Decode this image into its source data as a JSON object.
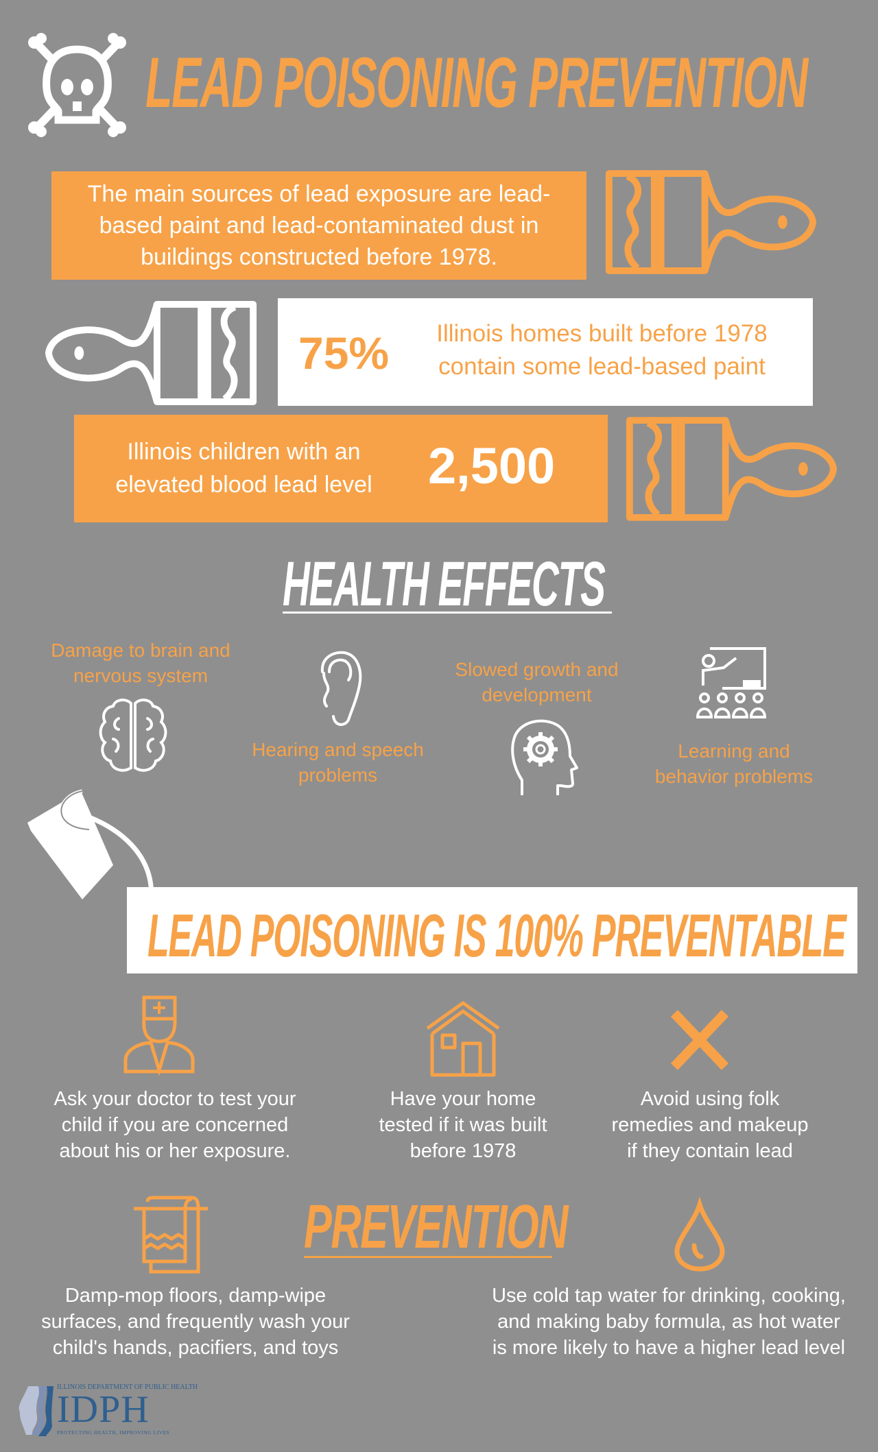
{
  "colors": {
    "background": "#8f8f8f",
    "accent": "#f7a248",
    "light": "#ffffff",
    "logo_blue": "#2f5f8f"
  },
  "header": {
    "title": "LEAD POISONING PREVENTION",
    "icon": "skull-crossbones-icon"
  },
  "facts": {
    "sources": "The main sources of lead exposure are lead-based paint and lead-contaminated dust in buildings constructed before 1978.",
    "sources_lines": [
      "The main sources of lead exposure are lead-",
      "based paint and lead-contaminated dust in",
      "buildings constructed before 1978."
    ],
    "homes_stat": "75%",
    "homes_lines": [
      "Illinois homes built before 1978",
      "contain some lead-based paint"
    ],
    "children_lines": [
      "Illinois children with an",
      "elevated blood lead level"
    ],
    "children_stat": "2,500"
  },
  "health_effects": {
    "heading": "HEALTH EFFECTS",
    "items": [
      {
        "lines": [
          "Damage to brain and",
          "nervous system"
        ],
        "icon": "brain-icon"
      },
      {
        "lines": [
          "Hearing and speech",
          "problems"
        ],
        "icon": "ear-icon"
      },
      {
        "lines": [
          "Slowed growth and",
          "development"
        ],
        "icon": "head-gear-icon"
      },
      {
        "lines": [
          "Learning and",
          "behavior problems"
        ],
        "icon": "classroom-icon"
      }
    ]
  },
  "banner": {
    "text": "LEAD POISONING IS 100% PREVENTABLE",
    "icon": "paint-bucket-icon"
  },
  "tips": [
    {
      "lines": [
        "Ask your doctor to test your",
        "child if you are concerned",
        "about his or her exposure."
      ],
      "icon": "doctor-icon"
    },
    {
      "lines": [
        "Have your home",
        "tested if it was built",
        "before 1978"
      ],
      "icon": "house-icon"
    },
    {
      "lines": [
        "Avoid using folk",
        "remedies and makeup",
        "if they contain lead"
      ],
      "icon": "x-icon"
    }
  ],
  "prevention": {
    "heading": "PREVENTION",
    "items": [
      {
        "lines": [
          "Damp-mop floors, damp-wipe",
          "surfaces, and frequently wash your",
          "child's hands, pacifiers, and toys"
        ],
        "icon": "towel-icon"
      },
      {
        "lines": [
          "Use cold tap water for drinking, cooking,",
          "and making baby formula, as hot water",
          "is more likely to have a higher lead level"
        ],
        "icon": "water-drop-icon"
      }
    ]
  },
  "footer": {
    "logo_top": "ILLINOIS DEPARTMENT OF PUBLIC HEALTH",
    "logo_main": "IDPH",
    "logo_tagline": "PROTECTING HEALTH, IMPROVING LIVES"
  }
}
